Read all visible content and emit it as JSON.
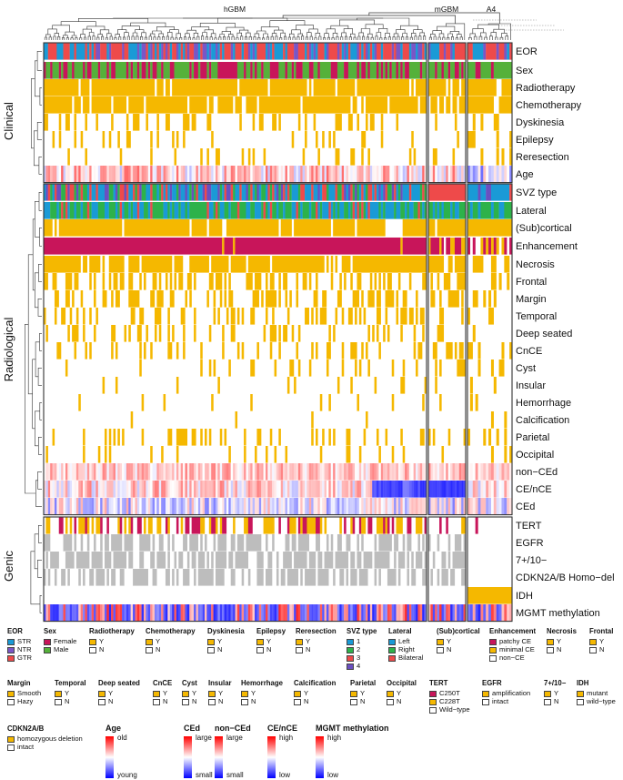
{
  "chart_data": {
    "type": "heatmap",
    "groups": [
      "hGBM",
      "mGBM",
      "A4"
    ],
    "group_sizes": [
      176,
      17,
      17
    ],
    "row_groups": [
      {
        "name": "Clinical",
        "rows": [
          "EOR",
          "Sex",
          "Radiotherapy",
          "Chemotherapy",
          "Dyskinesia",
          "Epilepsy",
          "Reresection",
          "Age"
        ]
      },
      {
        "name": "Radiological",
        "rows": [
          "SVZ type",
          "Lateral",
          "(Sub)cortical",
          "Enhancement",
          "Necrosis",
          "Frontal",
          "Margin",
          "Temporal",
          "Deep seated",
          "CnCE",
          "Cyst",
          "Insular",
          "Hemorrhage",
          "Calcification",
          "Parietal",
          "Occipital",
          "non−CEd",
          "CE/nCE",
          "CEd"
        ]
      },
      {
        "name": "Genic",
        "rows": [
          "TERT",
          "EGFR",
          "7+/10−",
          "CDKN2A/B Homo−del",
          "IDH",
          "MGMT methylation"
        ]
      }
    ],
    "row_freq": {
      "Radiotherapy": [
        0.92,
        0.9,
        0.88
      ],
      "Chemotherapy": [
        0.88,
        0.85,
        0.9
      ],
      "Dyskinesia": [
        0.22,
        0.25,
        0.15
      ],
      "Epilepsy": [
        0.18,
        0.2,
        0.3
      ],
      "Reresection": [
        0.1,
        0.1,
        0.1
      ],
      "Necrosis": [
        0.9,
        0.85,
        0.55
      ],
      "Frontal": [
        0.45,
        0.45,
        0.5
      ],
      "Margin": [
        0.4,
        0.45,
        0.35
      ],
      "Temporal": [
        0.35,
        0.3,
        0.25
      ],
      "Deep seated": [
        0.2,
        0.35,
        0.15
      ],
      "CnCE": [
        0.25,
        0.3,
        0.2
      ],
      "Cyst": [
        0.15,
        0.25,
        0.2
      ],
      "Insular": [
        0.1,
        0.1,
        0.15
      ],
      "Hemorrhage": [
        0.08,
        0.1,
        0.05
      ],
      "Calcification": [
        0.05,
        0.05,
        0.15
      ],
      "Parietal": [
        0.25,
        0.25,
        0.2
      ],
      "Occipital": [
        0.12,
        0.15,
        0.1
      ],
      "TERT": [
        0.55,
        0.3,
        0.1
      ],
      "EGFR": [
        0.45,
        0.35,
        0.1
      ],
      "7+/10−": [
        0.7,
        0.5,
        0.1
      ],
      "CDKN2A/B Homo−del": [
        0.55,
        0.45,
        0.3
      ],
      "IDH": [
        0.0,
        0.0,
        1.0
      ]
    },
    "colors": {
      "yes": "#f5b800",
      "no": "#ffffff",
      "frame": "#333333",
      "STR": "#1a9ad6",
      "NTR": "#7a56c6",
      "GTR": "#ee4a4a",
      "Female": "#c8155a",
      "Male": "#55b13a",
      "svz1": "#1a9ad6",
      "svz2": "#2db24a",
      "svz3": "#ee4a4a",
      "svz4": "#6a4fc0",
      "Left": "#1a9ad6",
      "Right": "#2db24a",
      "Bilateral": "#ee4a4a",
      "patchyCE": "#c8155a",
      "minimalCE": "#f5b800",
      "C250T": "#c8155a",
      "C228T": "#f5b800",
      "amplification": "#f5b800",
      "intact": "#ffffff",
      "gray": "#bdbdbd",
      "high": "#ff0000",
      "low": "#0000ff",
      "mid": "#ffffff"
    }
  },
  "legend": {
    "row1": [
      {
        "title": "EOR",
        "items": [
          {
            "label": "STR",
            "color": "#1a9ad6"
          },
          {
            "label": "NTR",
            "color": "#7a56c6"
          },
          {
            "label": "GTR",
            "color": "#ee4a4a"
          }
        ]
      },
      {
        "title": "Sex",
        "items": [
          {
            "label": "Female",
            "color": "#c8155a"
          },
          {
            "label": "Male",
            "color": "#55b13a"
          }
        ]
      },
      {
        "title": "Radiotherapy",
        "items": [
          {
            "label": "Y",
            "color": "#f5b800"
          },
          {
            "label": "N",
            "color": "#ffffff"
          }
        ]
      },
      {
        "title": "Chemotherapy",
        "items": [
          {
            "label": "Y",
            "color": "#f5b800"
          },
          {
            "label": "N",
            "color": "#ffffff"
          }
        ]
      },
      {
        "title": "Dyskinesia",
        "items": [
          {
            "label": "Y",
            "color": "#f5b800"
          },
          {
            "label": "N",
            "color": "#ffffff"
          }
        ]
      },
      {
        "title": "Epilepsy",
        "items": [
          {
            "label": "Y",
            "color": "#f5b800"
          },
          {
            "label": "N",
            "color": "#ffffff"
          }
        ]
      },
      {
        "title": "Reresection",
        "items": [
          {
            "label": "Y",
            "color": "#f5b800"
          },
          {
            "label": "N",
            "color": "#ffffff"
          }
        ]
      },
      {
        "title": "SVZ type",
        "items": [
          {
            "label": "1",
            "color": "#1a9ad6"
          },
          {
            "label": "2",
            "color": "#2db24a"
          },
          {
            "label": "3",
            "color": "#ee4a4a"
          },
          {
            "label": "4",
            "color": "#6a4fc0"
          }
        ]
      },
      {
        "title": "Lateral",
        "items": [
          {
            "label": "Left",
            "color": "#1a9ad6"
          },
          {
            "label": "Right",
            "color": "#2db24a"
          },
          {
            "label": "Bilateral",
            "color": "#ee4a4a"
          }
        ]
      },
      {
        "title": "(Sub)cortical",
        "items": [
          {
            "label": "Y",
            "color": "#f5b800"
          },
          {
            "label": "N",
            "color": "#ffffff"
          }
        ]
      },
      {
        "title": "Enhancement",
        "items": [
          {
            "label": "patchy CE",
            "color": "#c8155a"
          },
          {
            "label": "minimal CE",
            "color": "#f5b800"
          },
          {
            "label": "non−CE",
            "color": "#ffffff"
          }
        ]
      },
      {
        "title": "Necrosis",
        "items": [
          {
            "label": "Y",
            "color": "#f5b800"
          },
          {
            "label": "N",
            "color": "#ffffff"
          }
        ]
      },
      {
        "title": "Frontal",
        "items": [
          {
            "label": "Y",
            "color": "#f5b800"
          },
          {
            "label": "N",
            "color": "#ffffff"
          }
        ]
      }
    ],
    "row2": [
      {
        "title": "Margin",
        "items": [
          {
            "label": "Smooth",
            "color": "#f5b800"
          },
          {
            "label": "Hazy",
            "color": "#ffffff"
          }
        ]
      },
      {
        "title": "Temporal",
        "items": [
          {
            "label": "Y",
            "color": "#f5b800"
          },
          {
            "label": "N",
            "color": "#ffffff"
          }
        ]
      },
      {
        "title": "Deep seated",
        "items": [
          {
            "label": "Y",
            "color": "#f5b800"
          },
          {
            "label": "N",
            "color": "#ffffff"
          }
        ]
      },
      {
        "title": "CnCE",
        "items": [
          {
            "label": "Y",
            "color": "#f5b800"
          },
          {
            "label": "N",
            "color": "#ffffff"
          }
        ]
      },
      {
        "title": "Cyst",
        "items": [
          {
            "label": "Y",
            "color": "#f5b800"
          },
          {
            "label": "N",
            "color": "#ffffff"
          }
        ]
      },
      {
        "title": "Insular",
        "items": [
          {
            "label": "Y",
            "color": "#f5b800"
          },
          {
            "label": "N",
            "color": "#ffffff"
          }
        ]
      },
      {
        "title": "Hemorrhage",
        "items": [
          {
            "label": "Y",
            "color": "#f5b800"
          },
          {
            "label": "N",
            "color": "#ffffff"
          }
        ]
      },
      {
        "title": "Calcification",
        "items": [
          {
            "label": "Y",
            "color": "#f5b800"
          },
          {
            "label": "N",
            "color": "#ffffff"
          }
        ]
      },
      {
        "title": "Parietal",
        "items": [
          {
            "label": "Y",
            "color": "#f5b800"
          },
          {
            "label": "N",
            "color": "#ffffff"
          }
        ]
      },
      {
        "title": "Occipital",
        "items": [
          {
            "label": "Y",
            "color": "#f5b800"
          },
          {
            "label": "N",
            "color": "#ffffff"
          }
        ]
      },
      {
        "title": "TERT",
        "items": [
          {
            "label": "C250T",
            "color": "#c8155a"
          },
          {
            "label": "C228T",
            "color": "#f5b800"
          },
          {
            "label": "Wild−type",
            "color": "#ffffff"
          }
        ]
      },
      {
        "title": "EGFR",
        "items": [
          {
            "label": "amplification",
            "color": "#f5b800"
          },
          {
            "label": "intact",
            "color": "#ffffff"
          }
        ]
      },
      {
        "title": "7+/10−",
        "items": [
          {
            "label": "Y",
            "color": "#f5b800"
          },
          {
            "label": "N",
            "color": "#ffffff"
          }
        ]
      },
      {
        "title": "IDH",
        "items": [
          {
            "label": "mutant",
            "color": "#f5b800"
          },
          {
            "label": "wild−type",
            "color": "#ffffff"
          }
        ]
      }
    ],
    "row3_discrete": {
      "title": "CDKN2A/B",
      "items": [
        {
          "label": "homozygous deletion",
          "color": "#f5b800"
        },
        {
          "label": "intact",
          "color": "#ffffff"
        }
      ]
    },
    "row3_gradients": [
      {
        "title": "Age",
        "high": "old",
        "low": "young"
      },
      {
        "title": "CEd",
        "high": "large",
        "low": "small"
      },
      {
        "title": "non−CEd",
        "high": "large",
        "low": "small"
      },
      {
        "title": "CE/nCE",
        "high": "high",
        "low": "low"
      },
      {
        "title": "MGMT methylation",
        "high": "high",
        "low": "low"
      }
    ]
  }
}
